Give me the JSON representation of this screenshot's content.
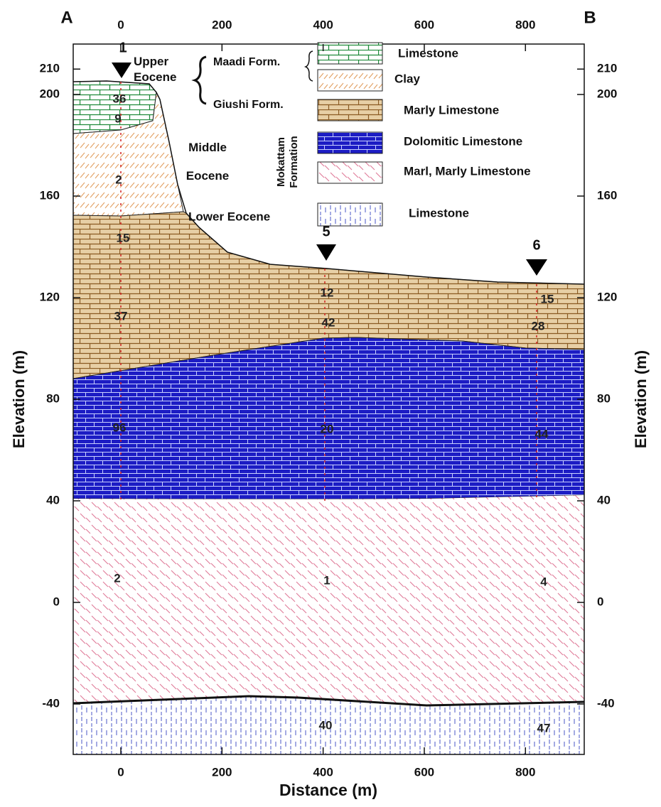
{
  "corners": {
    "left": "A",
    "right": "B"
  },
  "x_axis": {
    "title": "Distance (m)",
    "ticks": [
      0,
      200,
      400,
      600,
      800
    ]
  },
  "y_axis": {
    "title": "Elevation (m)",
    "ticks": [
      210,
      200,
      160,
      120,
      80,
      40,
      0,
      -40
    ]
  },
  "eras": [
    "Upper Eocene",
    "Middle Eocene",
    "Lower Eocene"
  ],
  "formations": {
    "maadi": "Maadi Form.",
    "giushi": "Giushi Form.",
    "mokattam": "Mokattam Formation"
  },
  "legend": [
    "Limestone",
    "Clay",
    "Marly Limestone",
    "Dolomitic Limestone",
    "Marl, Marly Limestone",
    "Limestone"
  ],
  "wells": [
    {
      "label": "1",
      "readings": [
        36,
        9,
        2,
        15,
        37,
        96,
        2
      ]
    },
    {
      "label": "5",
      "readings": [
        12,
        42,
        20,
        1,
        40
      ]
    },
    {
      "label": "6",
      "readings": [
        15,
        28,
        44,
        4,
        47
      ]
    }
  ]
}
